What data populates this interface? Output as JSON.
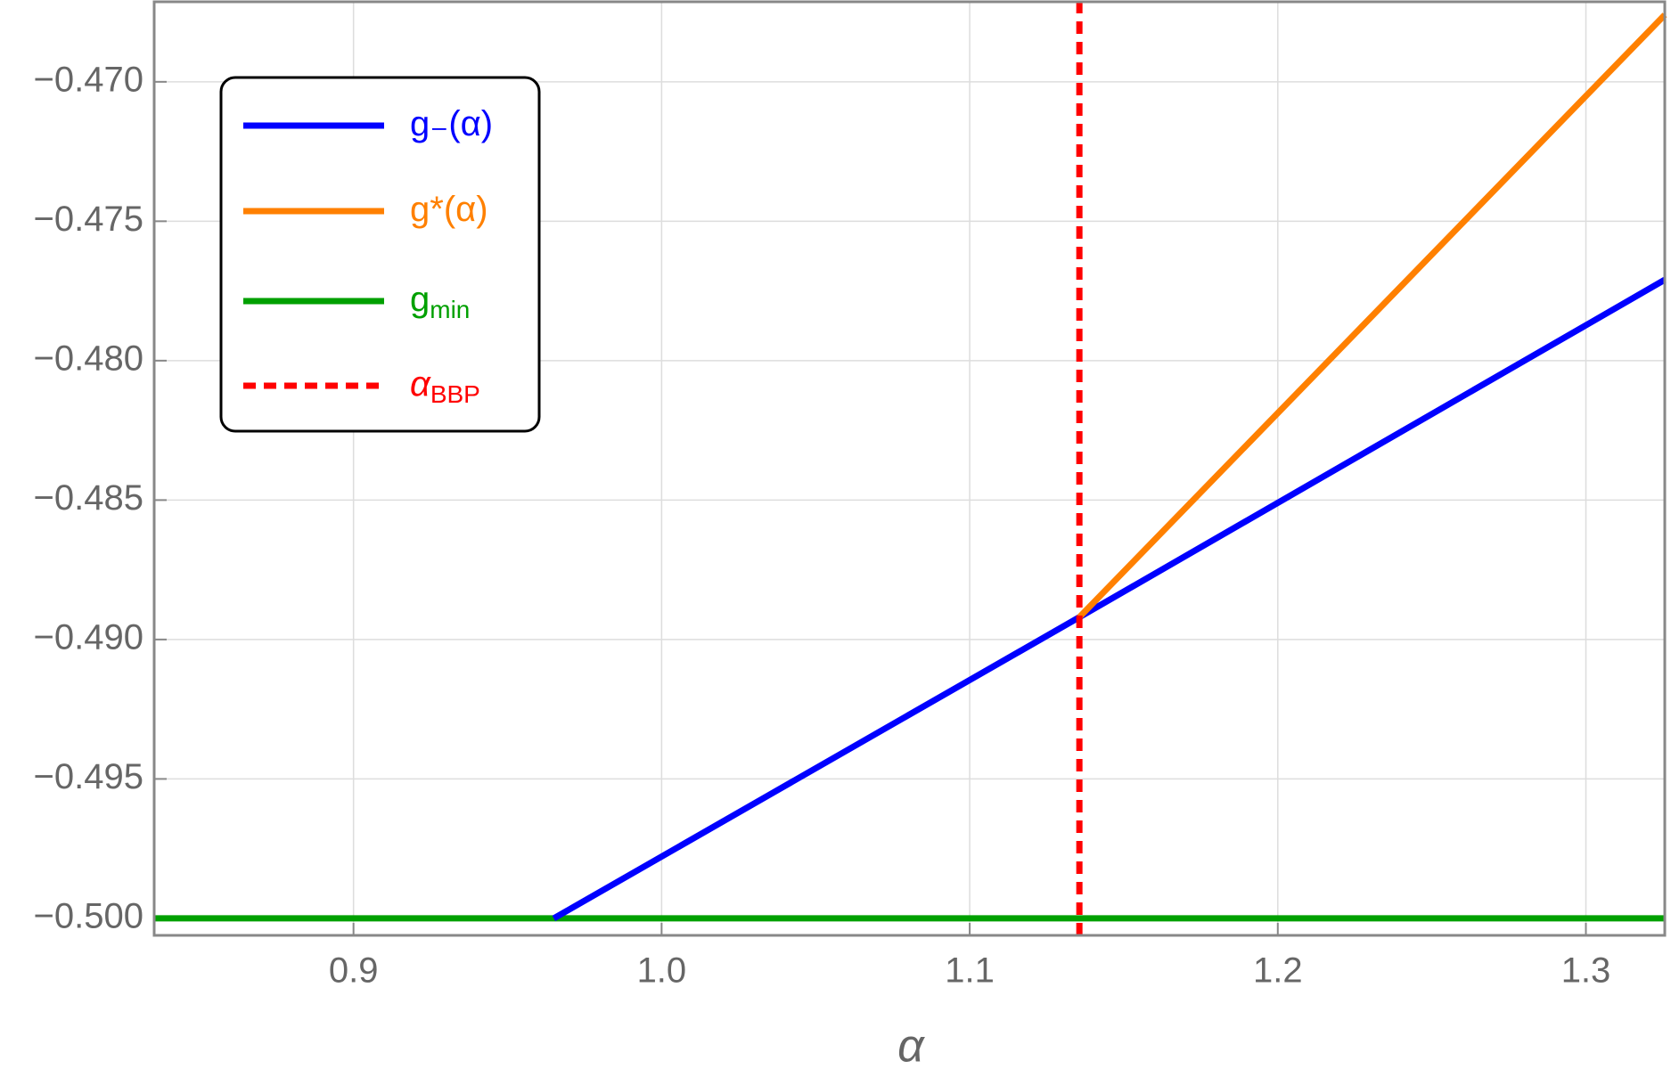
{
  "chart_data": {
    "type": "line",
    "x_label": "α",
    "xlim": [
      0.8353,
      1.3256
    ],
    "ylim": [
      -0.50061,
      -0.46713
    ],
    "xticks": [
      0.9,
      {
        "value": 1,
        "label": "1.0"
      },
      1.1,
      1.2,
      1.3
    ],
    "yticks": [
      {
        "value": -0.47,
        "label": "−0.470"
      },
      {
        "value": -0.475,
        "label": "−0.475"
      },
      {
        "value": -0.48,
        "label": "−0.480"
      },
      {
        "value": -0.485,
        "label": "−0.485"
      },
      {
        "value": -0.49,
        "label": "−0.490"
      },
      {
        "value": -0.495,
        "label": "−0.495"
      },
      {
        "value": -0.5,
        "label": "−0.500"
      }
    ],
    "grid": true,
    "legend": "upper left",
    "series": [
      {
        "name": "g₋(α)",
        "color": "#0000ff",
        "x": [
          0.965,
          1.1356,
          1.3256
        ],
        "values": [
          -0.5,
          -0.4892,
          -0.4771
        ]
      },
      {
        "name": "g*(α)",
        "color": "#ff8000",
        "x": [
          1.1356,
          1.3256
        ],
        "values": [
          -0.4892,
          -0.4676
        ]
      },
      {
        "name": "g",
        "sub": "min",
        "color": "#00a000",
        "x": [
          0.8353,
          1.3256
        ],
        "values": [
          -0.5,
          -0.5
        ]
      },
      {
        "name": "α",
        "sub": "BBP",
        "color": "#ff0000",
        "dashed": true,
        "x": [
          1.1356,
          1.1356
        ],
        "values": [
          -0.50061,
          -0.46713
        ]
      }
    ]
  }
}
